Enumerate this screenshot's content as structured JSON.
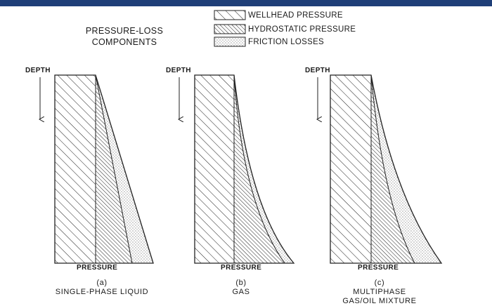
{
  "legend": {
    "title_line1": "PRESSURE-LOSS",
    "title_line2": "COMPONENTS",
    "items": [
      {
        "label": "WELLHEAD PRESSURE",
        "pattern": "wide-hatch"
      },
      {
        "label": "HYDROSTATIC PRESSURE",
        "pattern": "dense-hatch"
      },
      {
        "label": "FRICTION LOSSES",
        "pattern": "stipple"
      }
    ]
  },
  "panels": [
    {
      "depth_label": "DEPTH",
      "pressure_label": "PRESSURE",
      "letter": "(a)",
      "caption_line1": "SINGLE-PHASE LIQUID",
      "caption_line2": ""
    },
    {
      "depth_label": "DEPTH",
      "pressure_label": "PRESSURE",
      "letter": "(b)",
      "caption_line1": "GAS",
      "caption_line2": ""
    },
    {
      "depth_label": "DEPTH",
      "pressure_label": "PRESSURE",
      "letter": "(c)",
      "caption_line1": "MULTIPHASE",
      "caption_line2": "GAS/OIL MIXTURE"
    }
  ],
  "colors": {
    "top_bar": "#1f3f78",
    "ink": "#1a1a1a"
  }
}
